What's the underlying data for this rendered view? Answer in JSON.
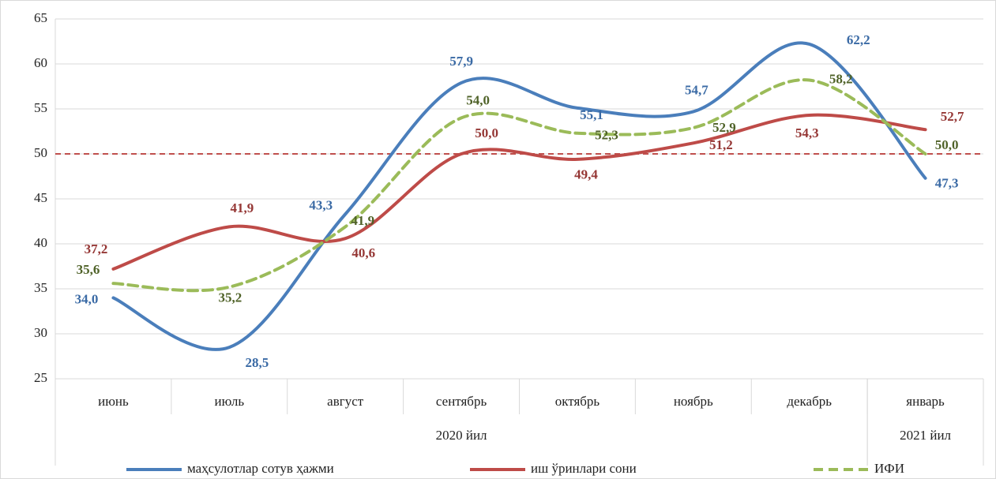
{
  "chart_data": {
    "type": "line",
    "groups": [
      {
        "label": "2020 йил",
        "categories": [
          "июнь",
          "июль",
          "август",
          "сентябрь",
          "октябрь",
          "ноябрь",
          "декабрь"
        ]
      },
      {
        "label": "2021 йил",
        "categories": [
          "январь"
        ]
      }
    ],
    "series": [
      {
        "name": "маҳсулотлар сотув ҳажми",
        "color": "#4a7ebb",
        "label_color": "#3a6aa5",
        "dash": false,
        "values": [
          34.0,
          28.5,
          43.3,
          57.9,
          55.1,
          54.7,
          62.2,
          47.3
        ],
        "value_labels": [
          "34,0",
          "28,5",
          "43,3",
          "57,9",
          "55,1",
          "54,7",
          "62,2",
          "47,3"
        ]
      },
      {
        "name": "иш ўринлари сони",
        "color": "#be4b48",
        "label_color": "#953735",
        "dash": false,
        "values": [
          37.2,
          41.9,
          40.6,
          50.0,
          49.4,
          51.2,
          54.3,
          52.7
        ],
        "value_labels": [
          "37,2",
          "41,9",
          "40,6",
          "50,0",
          "49,4",
          "51,2",
          "54,3",
          "52,7"
        ]
      },
      {
        "name": "ИФИ",
        "color": "#9bbb59",
        "label_color": "#4f6228",
        "dash": true,
        "values": [
          35.6,
          35.2,
          41.9,
          54.0,
          52.3,
          52.9,
          58.2,
          50.0
        ],
        "value_labels": [
          "35,6",
          "35,2",
          "41,9",
          "54,0",
          "52,3",
          "52,9",
          "58,2",
          "50,0"
        ]
      }
    ],
    "reference_line": {
      "value": 50,
      "color": "#c0504d"
    },
    "ylim": [
      25,
      65
    ],
    "yticks": [
      25,
      30,
      35,
      40,
      45,
      50,
      55,
      60,
      65
    ],
    "grid": true,
    "legend": "bottom"
  }
}
